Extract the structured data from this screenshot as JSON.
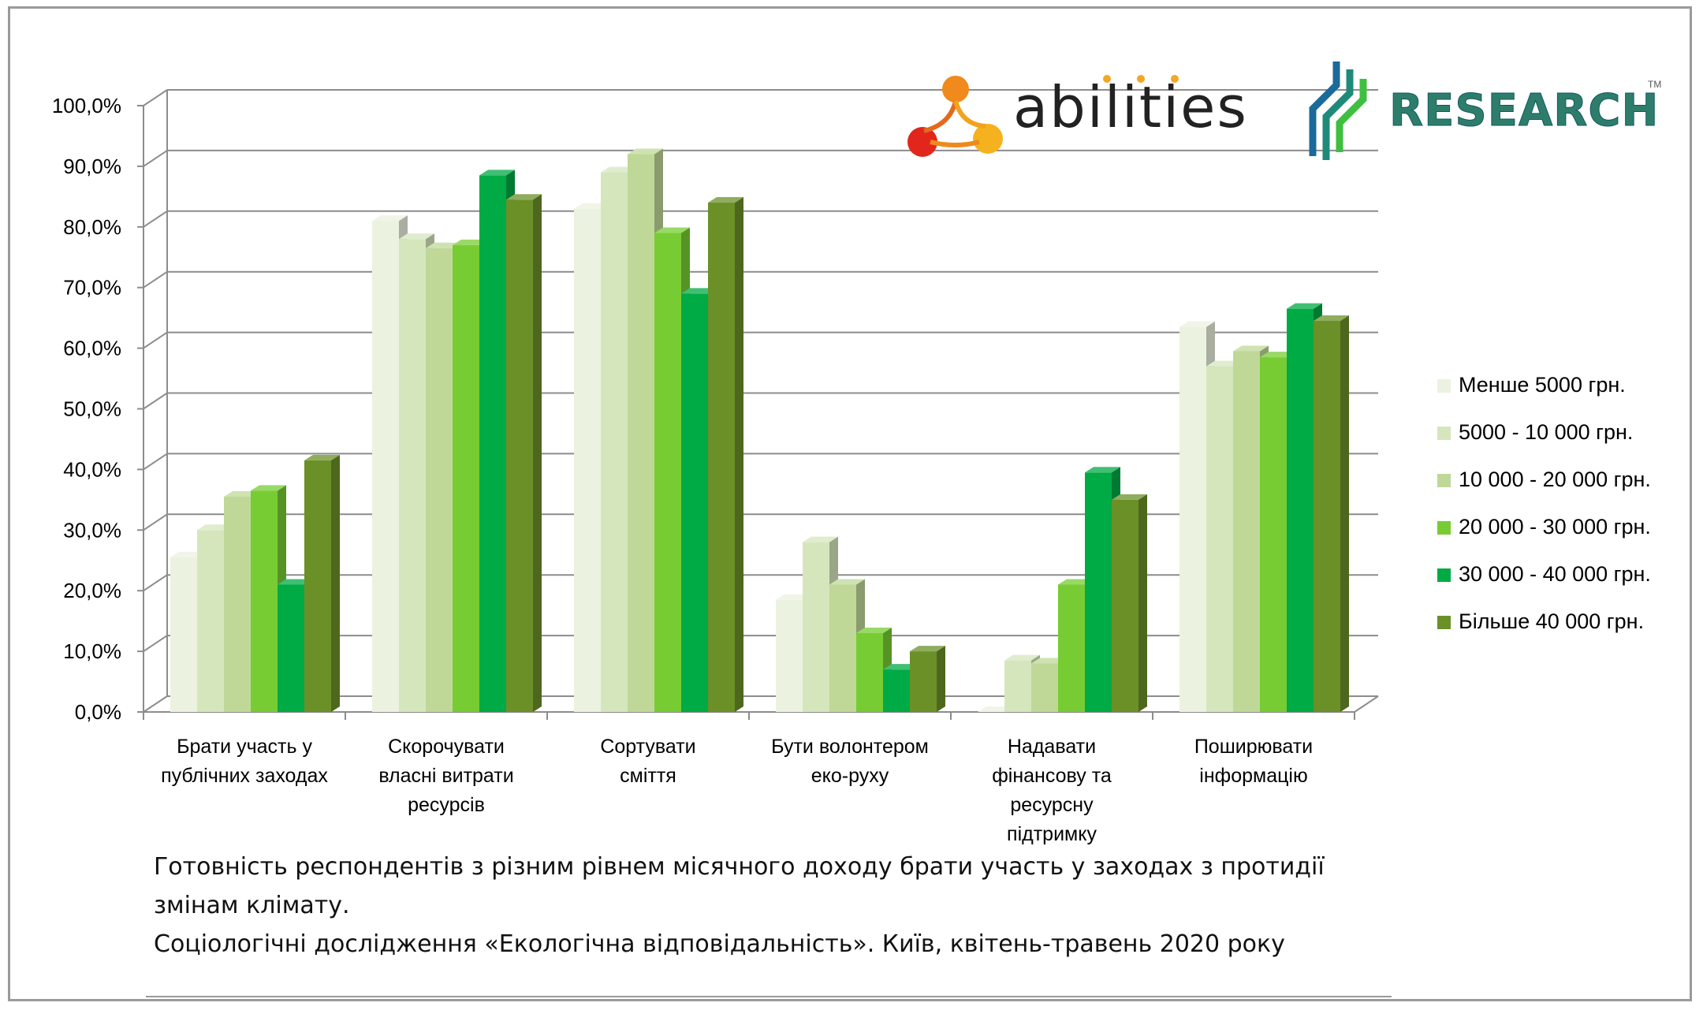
{
  "chart_data": {
    "type": "bar",
    "categories": [
      [
        "Брати участь у",
        "публічних заходах"
      ],
      [
        "Скорочувати",
        "власні витрати",
        "ресурсів"
      ],
      [
        "Сортувати",
        "сміття"
      ],
      [
        "Бути волонтером",
        "еко-руху"
      ],
      [
        "Надавати",
        "фінансову та",
        "ресурсну",
        "підтримку"
      ],
      [
        "Поширювати",
        "інформацію"
      ]
    ],
    "series": [
      {
        "name": "Менше  5000 грн.",
        "color": "#ebf2df",
        "values": [
          25.5,
          81,
          83,
          18.5,
          0,
          63.5
        ]
      },
      {
        "name": "5000 - 10 000 грн.",
        "color": "#d5e6bd",
        "values": [
          30,
          78,
          89,
          28,
          8.5,
          57
        ]
      },
      {
        "name": "10 000 - 20 000 грн.",
        "color": "#bfd898",
        "values": [
          35.5,
          76.5,
          92,
          21,
          8,
          59.5
        ]
      },
      {
        "name": "20 000 - 30 000 грн.",
        "color": "#77cc33",
        "values": [
          36.5,
          77,
          79,
          13,
          21,
          58.5
        ]
      },
      {
        "name": "30 000 - 40 000 грн.",
        "color": "#00aa44",
        "values": [
          21,
          88.5,
          69,
          7,
          39.5,
          66.5
        ]
      },
      {
        "name": "Більше 40 000 грн.",
        "color": "#6b9028",
        "values": [
          41.5,
          84.5,
          84,
          10,
          35,
          64.5
        ]
      }
    ],
    "yticks": [
      "0,0%",
      "10,0%",
      "20,0%",
      "30,0%",
      "40,0%",
      "50,0%",
      "60,0%",
      "70,0%",
      "80,0%",
      "90,0%",
      "100,0%"
    ],
    "ylim": [
      0,
      100
    ],
    "grid": true,
    "legend_position": "right",
    "caption": [
      "Готовність респондентів з різним рівнем місячного доходу брати участь у заходах з протидії",
      "змінам клімату.",
      "Соціологічні дослідження «Екологічна відповідальність». Київ, квітень-травень 2020 року"
    ]
  },
  "logos": {
    "abilities": "abilities",
    "research": "RESEARCH",
    "research_tm": "TM"
  }
}
